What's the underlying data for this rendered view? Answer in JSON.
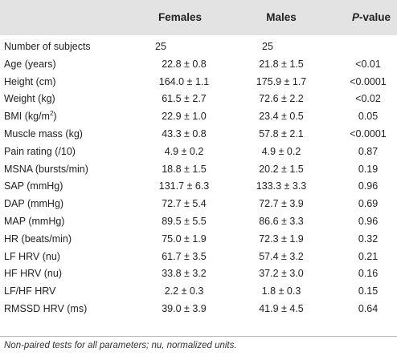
{
  "table": {
    "headers": {
      "parameter": "",
      "females": "Females",
      "males": "Males",
      "p_italic": "P",
      "p_rest": "-value"
    },
    "rows": [
      {
        "label": "Number of subjects",
        "label_sup": "",
        "label_tail": "",
        "females": "25",
        "males": "25",
        "p": ""
      },
      {
        "label": "Age (years)",
        "label_sup": "",
        "label_tail": "",
        "females": "22.8 ± 0.8",
        "males": "21.8 ± 1.5",
        "p": "<0.01"
      },
      {
        "label": "Height (cm)",
        "label_sup": "",
        "label_tail": "",
        "females": "164.0 ± 1.1",
        "males": "175.9 ± 1.7",
        "p": "<0.0001"
      },
      {
        "label": "Weight (kg)",
        "label_sup": "",
        "label_tail": "",
        "females": "61.5 ± 2.7",
        "males": "72.6 ± 2.2",
        "p": "<0.02"
      },
      {
        "label": "BMI (kg/m",
        "label_sup": "2",
        "label_tail": ")",
        "females": "22.9 ± 1.0",
        "males": "23.4 ± 0.5",
        "p": "0.05"
      },
      {
        "label": "Muscle mass (kg)",
        "label_sup": "",
        "label_tail": "",
        "females": "43.3 ± 0.8",
        "males": "57.8 ± 2.1",
        "p": "<0.0001"
      },
      {
        "label": "Pain rating (/10)",
        "label_sup": "",
        "label_tail": "",
        "females": "4.9 ± 0.2",
        "males": "4.9 ± 0.2",
        "p": "0.87"
      },
      {
        "label": "MSNA (bursts/min)",
        "label_sup": "",
        "label_tail": "",
        "females": "18.8 ± 1.5",
        "males": "20.2 ± 1.5",
        "p": "0.19"
      },
      {
        "label": "SAP (mmHg)",
        "label_sup": "",
        "label_tail": "",
        "females": "131.7 ± 6.3",
        "males": "133.3 ± 3.3",
        "p": "0.96"
      },
      {
        "label": "DAP (mmHg)",
        "label_sup": "",
        "label_tail": "",
        "females": "72.7 ± 5.4",
        "males": "72.7 ± 3.9",
        "p": "0.69"
      },
      {
        "label": "MAP (mmHg)",
        "label_sup": "",
        "label_tail": "",
        "females": "89.5 ± 5.5",
        "males": "86.6 ± 3.3",
        "p": "0.96"
      },
      {
        "label": "HR (beats/min)",
        "label_sup": "",
        "label_tail": "",
        "females": "75.0 ± 1.9",
        "males": "72.3 ± 1.9",
        "p": "0.32"
      },
      {
        "label": "LF HRV (nu)",
        "label_sup": "",
        "label_tail": "",
        "females": "61.7 ± 3.5",
        "males": "57.4 ± 3.2",
        "p": "0.21"
      },
      {
        "label": "HF HRV (nu)",
        "label_sup": "",
        "label_tail": "",
        "females": "33.8 ± 3.2",
        "males": "37.2 ± 3.0",
        "p": "0.16"
      },
      {
        "label": "LF/HF HRV",
        "label_sup": "",
        "label_tail": "",
        "females": "2.2 ± 0.3",
        "males": "1.8 ± 0.3",
        "p": "0.15"
      },
      {
        "label": "RMSSD HRV (ms)",
        "label_sup": "",
        "label_tail": "",
        "females": "39.0 ± 3.9",
        "males": "41.9 ± 4.5",
        "p": "0.64"
      }
    ],
    "footnote": "Non-paired tests for all parameters; nu, normalized units."
  }
}
